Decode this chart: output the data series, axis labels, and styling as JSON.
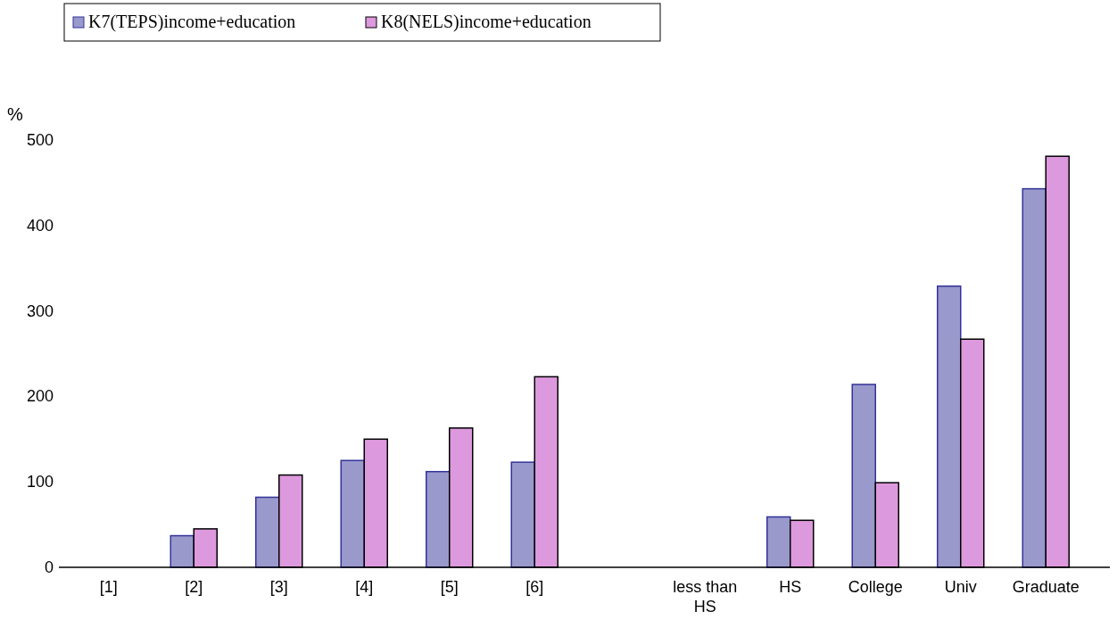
{
  "chart_data": {
    "type": "bar",
    "ylabel": "%",
    "categories": [
      "[1]",
      "[2]",
      "[3]",
      "[4]",
      "[5]",
      "[6]",
      null,
      "less than HS",
      "HS",
      "College",
      "Univ",
      "Graduate"
    ],
    "series": [
      {
        "name": "K7(TEPS)income+education",
        "color": "#9999cc",
        "values": [
          0,
          37,
          82,
          125,
          112,
          123,
          null,
          0,
          59,
          214,
          329,
          443
        ]
      },
      {
        "name": "K8(NELS)income+education",
        "color": "#dd99dd",
        "values": [
          0,
          45,
          108,
          150,
          163,
          223,
          null,
          0,
          55,
          99,
          267,
          481
        ]
      }
    ],
    "ylim": [
      0,
      500
    ],
    "yticks": [
      0,
      100,
      200,
      300,
      400,
      500
    ],
    "grid": false,
    "legend": "top left"
  }
}
